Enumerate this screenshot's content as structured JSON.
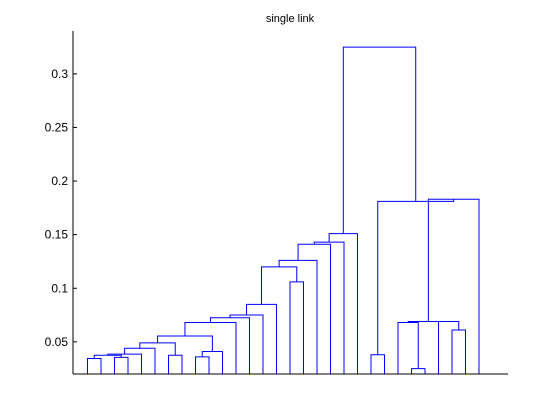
{
  "chart_data": {
    "type": "dendrogram",
    "title": "single link",
    "xlabel": "",
    "ylabel": "",
    "ylim": [
      0.02,
      0.34
    ],
    "ytick_values": [
      0.05,
      0.1,
      0.15,
      0.2,
      0.25,
      0.3
    ],
    "ytick_labels": [
      "0.05",
      "0.1",
      "0.15",
      "0.2",
      "0.25",
      "0.3"
    ],
    "xtick_labels": [],
    "leaf_count": 30,
    "leaf_height": 0.02,
    "line_color": "#0000ff",
    "grid": false,
    "merges": [
      {
        "left": 0,
        "right": 1,
        "height": 0.0345
      },
      {
        "left": 2,
        "right": 3,
        "height": 0.0355
      },
      {
        "left": 30,
        "right": 31,
        "height": 0.0375
      },
      {
        "left": 32,
        "right": 4,
        "height": 0.0385
      },
      {
        "left": 33,
        "right": 5,
        "height": 0.044
      },
      {
        "left": 6,
        "right": 7,
        "height": 0.0375
      },
      {
        "left": 34,
        "right": 35,
        "height": 0.049
      },
      {
        "left": 8,
        "right": 9,
        "height": 0.036
      },
      {
        "left": 37,
        "right": 10,
        "height": 0.041
      },
      {
        "left": 36,
        "right": 38,
        "height": 0.0555
      },
      {
        "left": 39,
        "right": 11,
        "height": 0.068
      },
      {
        "left": 40,
        "right": 12,
        "height": 0.0725
      },
      {
        "left": 41,
        "right": 13,
        "height": 0.075
      },
      {
        "left": 42,
        "right": 14,
        "height": 0.085
      },
      {
        "left": 15,
        "right": 16,
        "height": 0.106
      },
      {
        "left": 43,
        "right": 44,
        "height": 0.12
      },
      {
        "left": 45,
        "right": 17,
        "height": 0.126
      },
      {
        "left": 46,
        "right": 18,
        "height": 0.141
      },
      {
        "left": 47,
        "right": 19,
        "height": 0.143
      },
      {
        "left": 48,
        "right": 20,
        "height": 0.151
      },
      {
        "left": 21,
        "right": 22,
        "height": 0.038
      },
      {
        "left": 24,
        "right": 25,
        "height": 0.025
      },
      {
        "left": 23,
        "right": 51,
        "height": 0.068
      },
      {
        "left": 27,
        "right": 28,
        "height": 0.061
      },
      {
        "left": 26,
        "right": 53,
        "height": 0.069
      },
      {
        "left": 52,
        "right": 54,
        "height": 0.069
      },
      {
        "left": 55,
        "right": 29,
        "height": 0.183
      },
      {
        "left": 50,
        "right": 56,
        "height": 0.181
      },
      {
        "left": 49,
        "right": 57,
        "height": 0.325
      }
    ]
  }
}
